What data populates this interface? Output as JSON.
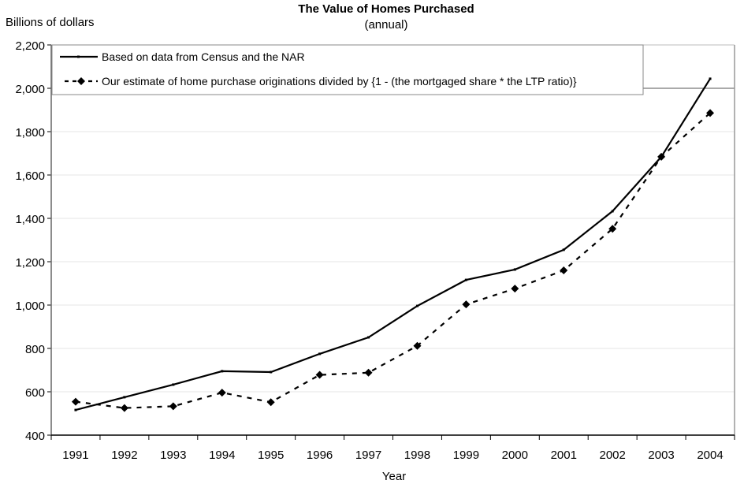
{
  "chart_data": {
    "type": "line",
    "title": "The Value of Homes Purchased",
    "subtitle": "(annual)",
    "ylabel": "Billions of dollars",
    "xlabel": "Year",
    "ylim": [
      400,
      2200
    ],
    "yticks": [
      400,
      600,
      800,
      1000,
      1200,
      1400,
      1600,
      1800,
      2000,
      2200
    ],
    "ytick_labels": [
      "400",
      "600",
      "800",
      "1,000",
      "1,200",
      "1,400",
      "1,600",
      "1,800",
      "2,000",
      "2,200"
    ],
    "grid": true,
    "legend_position": "top-left",
    "x": [
      "1991",
      "1992",
      "1993",
      "1994",
      "1995",
      "1996",
      "1997",
      "1998",
      "1999",
      "2000",
      "2001",
      "2002",
      "2003",
      "2004"
    ],
    "series": [
      {
        "name": "Based on data from Census and the NAR",
        "style": "solid",
        "marker": "small-square",
        "color": "#000000",
        "values": [
          516,
          575,
          633,
          695,
          691,
          775,
          851,
          996,
          1116,
          1164,
          1255,
          1433,
          1684,
          2044
        ]
      },
      {
        "name": "Our estimate of home purchase originations divided by {1 - (the mortgaged share * the LTP ratio)}",
        "style": "dashed",
        "marker": "diamond",
        "color": "#000000",
        "values": [
          554,
          525,
          533,
          596,
          552,
          678,
          688,
          812,
          1003,
          1076,
          1160,
          1352,
          1684,
          1886
        ]
      }
    ]
  }
}
